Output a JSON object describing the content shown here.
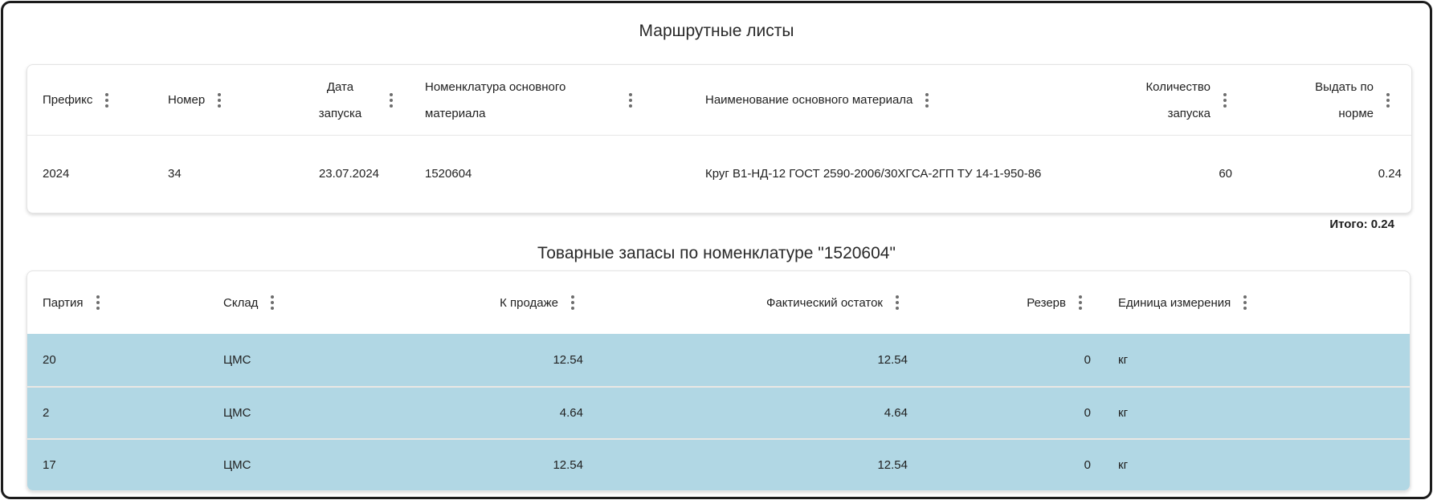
{
  "titles": {
    "route": "Маршрутные листы",
    "stock": "Товарные запасы по номенклатуре \"1520604\""
  },
  "route_table": {
    "columns": [
      {
        "label": "Префикс",
        "align": "left"
      },
      {
        "label": "Номер",
        "align": "left"
      },
      {
        "label": "Дата запуска",
        "align": "center"
      },
      {
        "label": "Номенклатура основного материала",
        "align": "left"
      },
      {
        "label": "Наименование основного материала",
        "align": "left"
      },
      {
        "label": "Количество запуска",
        "align": "right"
      },
      {
        "label": "Выдать по норме",
        "align": "right"
      }
    ],
    "row": {
      "prefix": "2024",
      "number": "34",
      "launch_date": "23.07.2024",
      "material_code": "1520604",
      "material_name": "Круг В1-НД-12 ГОСТ 2590-2006/30ХГСА-2ГП ТУ 14-1-950-86",
      "launch_qty": "60",
      "issue_by_norm": "0.24"
    },
    "total": "Итого: 0.24"
  },
  "stock_table": {
    "columns": [
      {
        "label": "Партия",
        "align": "left"
      },
      {
        "label": "Склад",
        "align": "left"
      },
      {
        "label": "К продаже",
        "align": "right"
      },
      {
        "label": "Фактический остаток",
        "align": "right"
      },
      {
        "label": "Резерв",
        "align": "right"
      },
      {
        "label": "Единица измерения",
        "align": "left"
      }
    ],
    "rows": [
      {
        "batch": "20",
        "warehouse": "ЦМС",
        "for_sale": "12.54",
        "actual_balance": "12.54",
        "reserve": "0",
        "unit": "кг"
      },
      {
        "batch": "2",
        "warehouse": "ЦМС",
        "for_sale": "4.64",
        "actual_balance": "4.64",
        "reserve": "0",
        "unit": "кг"
      },
      {
        "batch": "17",
        "warehouse": "ЦМС",
        "for_sale": "12.54",
        "actual_balance": "12.54",
        "reserve": "0",
        "unit": "кг"
      }
    ]
  },
  "icons": {
    "column_menu": "kebab-menu"
  },
  "colors": {
    "row_highlight": "#b1d7e4",
    "page_border": "#1b1b1b"
  }
}
